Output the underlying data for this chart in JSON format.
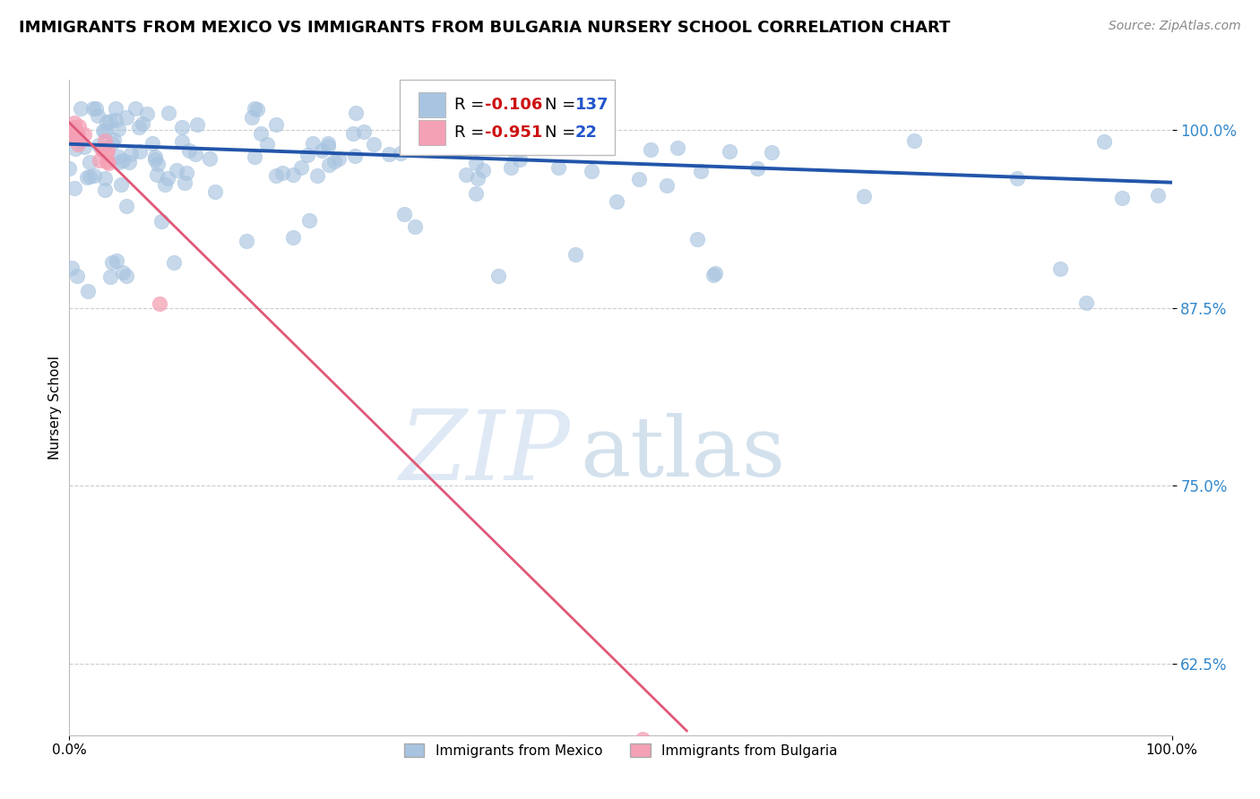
{
  "title": "IMMIGRANTS FROM MEXICO VS IMMIGRANTS FROM BULGARIA NURSERY SCHOOL CORRELATION CHART",
  "source": "Source: ZipAtlas.com",
  "ylabel": "Nursery School",
  "ytick_labels": [
    "62.5%",
    "75.0%",
    "87.5%",
    "100.0%"
  ],
  "ytick_values": [
    0.625,
    0.75,
    0.875,
    1.0
  ],
  "xtick_labels": [
    "0.0%",
    "100.0%"
  ],
  "xtick_values": [
    0.0,
    1.0
  ],
  "xlim": [
    0.0,
    1.0
  ],
  "ylim": [
    0.575,
    1.035
  ],
  "blue_R": -0.106,
  "blue_N": 137,
  "pink_R": -0.951,
  "pink_N": 22,
  "blue_color": "#a8c4e0",
  "pink_color": "#f4a0b5",
  "blue_line_color": "#2255aa",
  "pink_line_color": "#e05878",
  "bg_color": "#ffffff",
  "legend_label_blue": "Immigrants from Mexico",
  "legend_label_pink": "Immigrants from Bulgaria",
  "title_fontsize": 13,
  "source_fontsize": 10,
  "blue_trend": [
    0.0,
    1.0,
    0.99,
    0.963
  ],
  "pink_trend": [
    0.0,
    0.56,
    1.005,
    0.578
  ]
}
